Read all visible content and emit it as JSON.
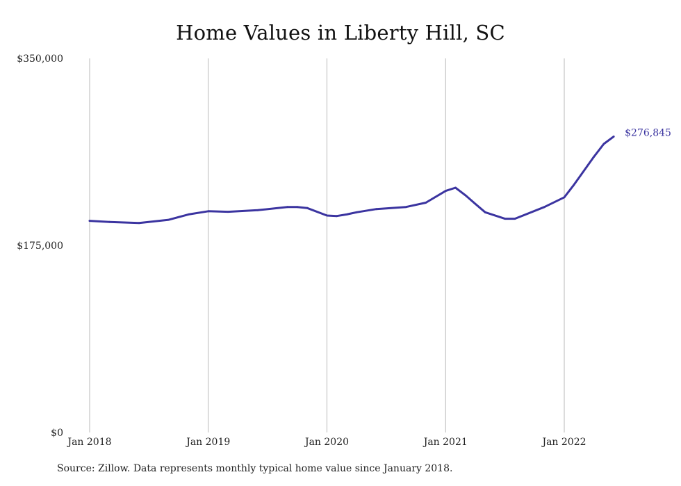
{
  "chart_data": {
    "type": "line",
    "title": "Home Values in Liberty Hill, SC",
    "xlabel": "",
    "ylabel": "",
    "ylim": [
      0,
      350000
    ],
    "y_ticks": [
      {
        "value": 0,
        "label": "$0"
      },
      {
        "value": 175000,
        "label": "$175,000"
      },
      {
        "value": 350000,
        "label": "$350,000"
      }
    ],
    "x_ticks": [
      {
        "value": "2018-01",
        "label": "Jan 2018"
      },
      {
        "value": "2019-01",
        "label": "Jan 2019"
      },
      {
        "value": "2020-01",
        "label": "Jan 2020"
      },
      {
        "value": "2021-01",
        "label": "Jan 2021"
      },
      {
        "value": "2022-01",
        "label": "Jan 2022"
      }
    ],
    "grid": "vertical",
    "line_color": "#3b34a0",
    "series": [
      {
        "x": [
          "2018-01",
          "2018-03",
          "2018-06",
          "2018-09",
          "2018-11",
          "2019-01",
          "2019-03",
          "2019-06",
          "2019-09",
          "2019-10",
          "2019-11",
          "2020-01",
          "2020-02",
          "2020-03",
          "2020-04",
          "2020-06",
          "2020-09",
          "2020-11",
          "2021-01",
          "2021-02",
          "2021-03",
          "2021-04",
          "2021-05",
          "2021-07",
          "2021-08",
          "2021-11",
          "2022-01",
          "2022-02",
          "2022-04",
          "2022-05",
          "2022-06"
        ],
        "values": [
          198000,
          197000,
          196000,
          199000,
          204000,
          207000,
          206500,
          208000,
          211000,
          211000,
          210000,
          203000,
          202500,
          204000,
          206000,
          209000,
          211000,
          215000,
          226000,
          229000,
          222000,
          214000,
          206000,
          200000,
          200000,
          211000,
          220000,
          232000,
          258000,
          270000,
          276845
        ]
      }
    ],
    "end_label": "$276,845"
  },
  "source_note": "Source: Zillow. Data represents monthly typical home value since January 2018."
}
